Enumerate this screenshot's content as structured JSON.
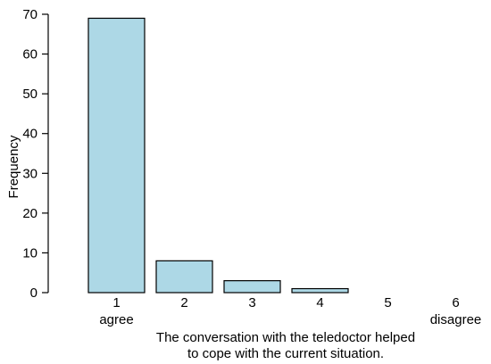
{
  "chart_data": {
    "type": "bar",
    "categories": [
      "1",
      "2",
      "3",
      "4",
      "5",
      "6"
    ],
    "category_sublabels": [
      "agree",
      "",
      "",
      "",
      "",
      "disagree"
    ],
    "values": [
      69,
      8,
      3,
      1,
      0,
      0
    ],
    "ylabel": "Frequency",
    "xlabel_lines": [
      "The conversation with the teledoctor helped",
      "to cope with the current situation."
    ],
    "ylim": [
      0,
      70
    ],
    "yticks": [
      0,
      10,
      20,
      30,
      40,
      50,
      60,
      70
    ],
    "bar_color": "#add8e6",
    "grid": false
  }
}
